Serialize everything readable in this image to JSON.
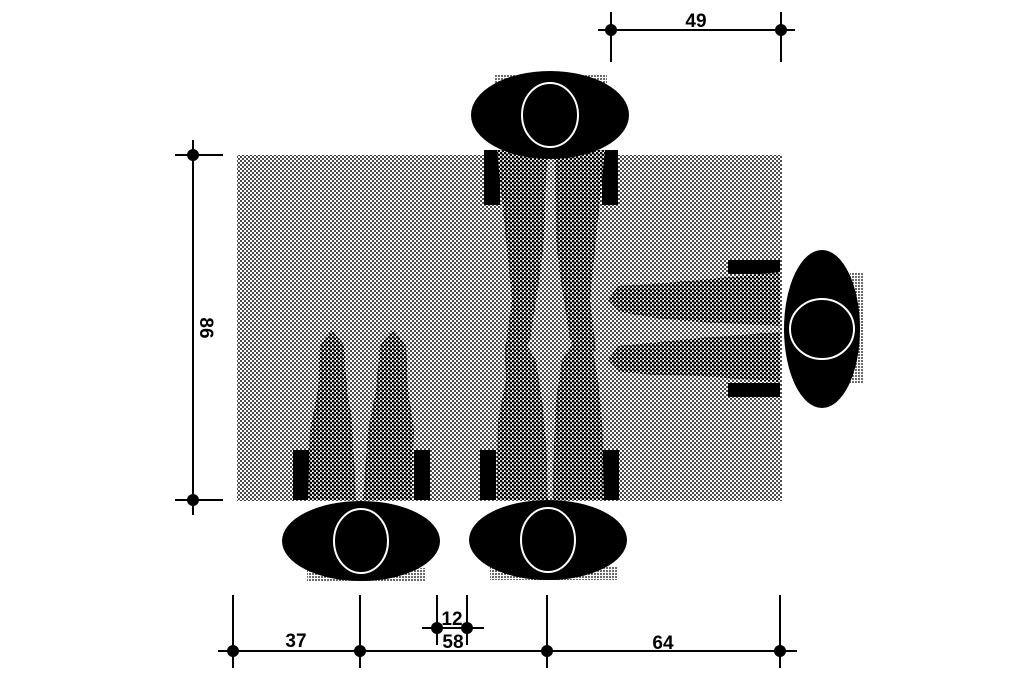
{
  "dimensions": {
    "top_width": "49",
    "table_depth": "86",
    "bottom_left": "37",
    "gap_small": "12",
    "gap_seat": "58",
    "bottom_right": "64"
  },
  "colors": {
    "ink": "#000000",
    "paper": "#ffffff",
    "table_tone": "#b9b9b9",
    "legs_tone": "#9a9a9a"
  }
}
